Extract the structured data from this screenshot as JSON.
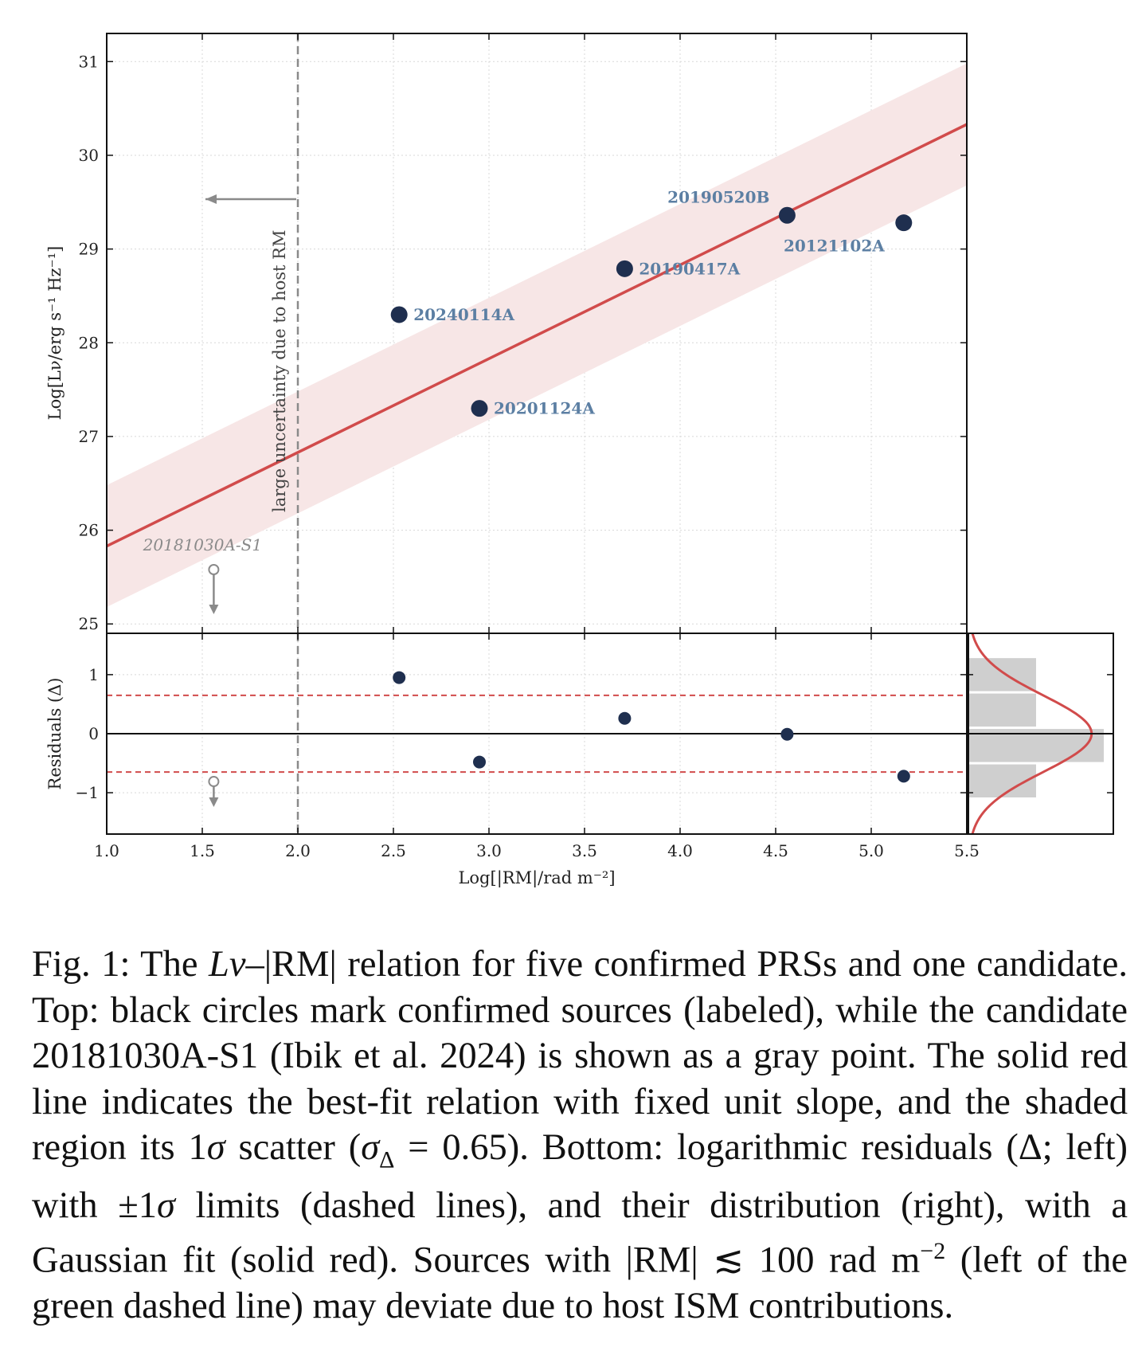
{
  "figure": {
    "top_panel": {
      "ylabel": "Log[Lν/erg s⁻¹ Hz⁻¹]",
      "yticks": [
        "25",
        "26",
        "27",
        "28",
        "29",
        "30",
        "31"
      ],
      "vline_text": "large uncertainty due to host RM"
    },
    "bottom_panel": {
      "ylabel": "Residuals (Δ)",
      "yticks": [
        "−1",
        "0",
        "1"
      ],
      "xlabel": "Log[|RM|/rad m⁻²]",
      "xticks": [
        "1.0",
        "1.5",
        "2.0",
        "2.5",
        "3.0",
        "3.5",
        "4.0",
        "4.5",
        "5.0",
        "5.5"
      ]
    }
  },
  "chart_data": [
    {
      "type": "scatter",
      "panel": "top",
      "xlim": [
        1.0,
        5.5
      ],
      "ylim": [
        24.9,
        31.3
      ],
      "grid": true,
      "points": [
        {
          "name": "20240114A",
          "x": 2.53,
          "y": 28.3
        },
        {
          "name": "20201124A",
          "x": 2.95,
          "y": 27.3
        },
        {
          "name": "20190417A",
          "x": 3.71,
          "y": 28.79
        },
        {
          "name": "20190520B",
          "x": 4.56,
          "y": 29.36
        },
        {
          "name": "20121102A",
          "x": 5.17,
          "y": 29.28
        }
      ],
      "candidate": {
        "name": "20181030A-S1",
        "x": 1.56,
        "y": 25.58,
        "upper_limit": true
      },
      "fit_line": {
        "slope": 1.0,
        "intercept": 24.83
      },
      "scatter_band": 0.65,
      "vline_x": 2.0,
      "colors": {
        "points": "#1f2f4f",
        "fit": "#d14b4b",
        "band": "#f7e6e6",
        "candidate": "#8a8a8a",
        "labels": "#5c7fa3"
      }
    },
    {
      "type": "scatter",
      "panel": "bottom-left",
      "xlim": [
        1.0,
        5.5
      ],
      "ylim": [
        -1.7,
        1.7
      ],
      "grid": true,
      "residuals": [
        {
          "x": 2.53,
          "y": 0.95
        },
        {
          "x": 2.95,
          "y": -0.48
        },
        {
          "x": 3.71,
          "y": 0.26
        },
        {
          "x": 4.56,
          "y": -0.01
        },
        {
          "x": 5.17,
          "y": -0.72
        }
      ],
      "candidate": {
        "x": 1.56,
        "y": -0.81,
        "upper_limit": true
      },
      "sigma_lines": [
        0.65,
        -0.65
      ],
      "vline_x": 2.0
    },
    {
      "type": "bar",
      "panel": "bottom-right",
      "orientation": "horizontal",
      "bins": [
        {
          "from": -1.1,
          "to": -0.5,
          "count": 1
        },
        {
          "from": -0.5,
          "to": 0.1,
          "count": 2
        },
        {
          "from": 0.1,
          "to": 0.7,
          "count": 1
        },
        {
          "from": 0.7,
          "to": 1.3,
          "count": 1
        }
      ],
      "gaussian_fit": {
        "mean": 0.0,
        "sigma": 0.65
      }
    }
  ],
  "caption": {
    "p1": "Fig. 1: The ",
    "lnu": "Lν",
    "p2": "–|RM| relation for five confirmed PRSs and one candidate. Top: black circles mark confirmed sources (labeled), while the candidate 20181030A-S1 (Ibik et al. 2024) is shown as a gray point. The solid red line indicates the best-fit relation with fixed unit slope, and the shaded region its 1",
    "sigma": "σ",
    "p3": " scatter (",
    "sigma2": "σ",
    "delta_sub": "Δ",
    "p4": " = 0.65). Bottom: logarithmic residuals (Δ; left) with ±1",
    "sigma3": "σ",
    "p5": " limits (dashed lines), and their distribution (right), with a Gaussian fit (solid red). Sources with |RM| ≲ 100 rad m",
    "sup": "−2",
    "p6": " (left of the green dashed line) may deviate due to host ISM contributions."
  }
}
